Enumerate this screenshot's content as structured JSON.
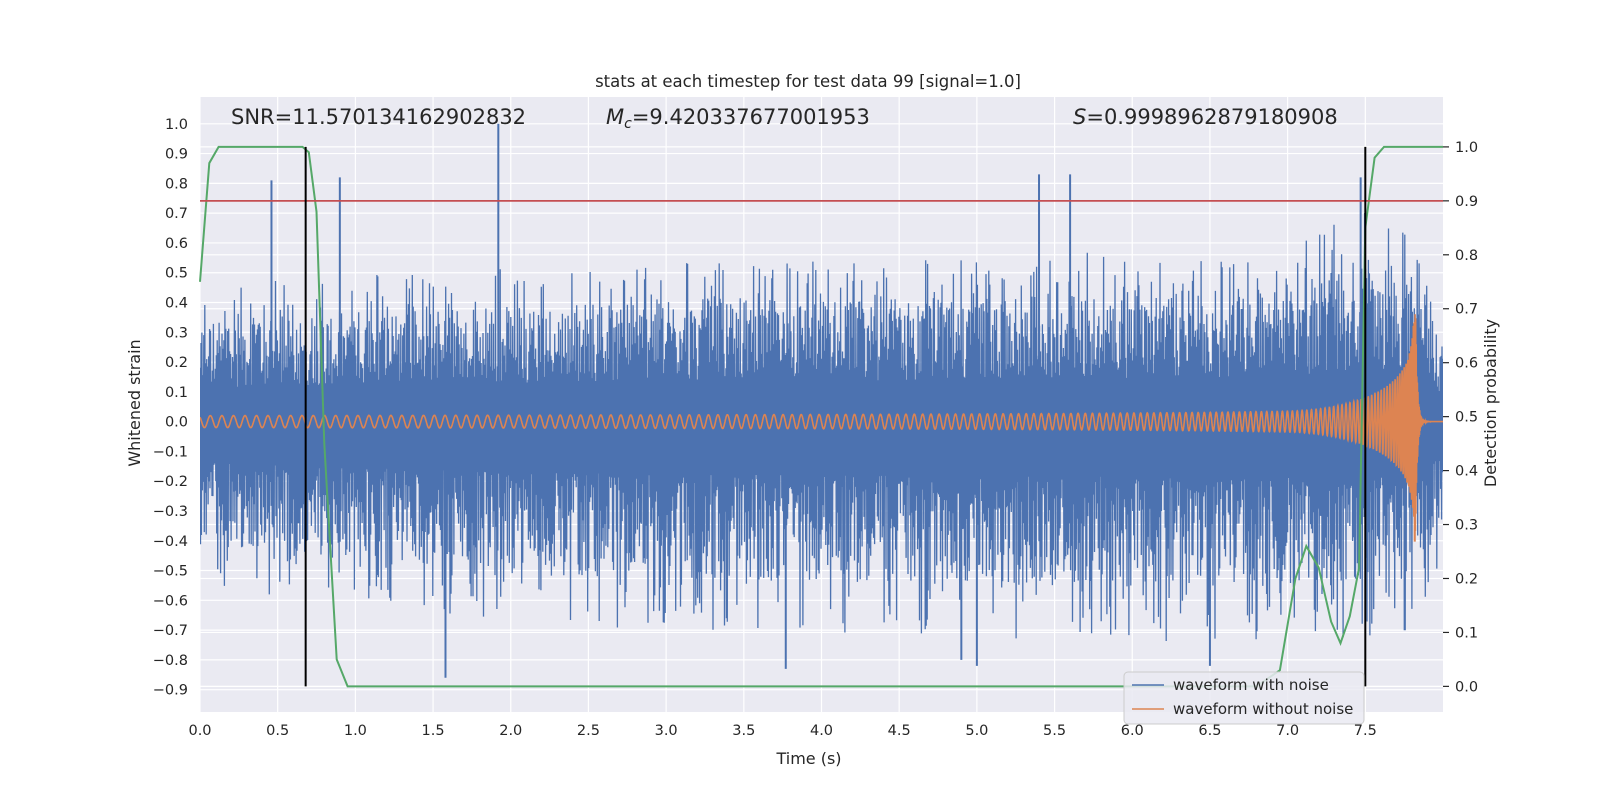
{
  "chart_data": {
    "type": "line",
    "title": "stats at each timestep for test data 99 [signal=1.0]",
    "xlabel": "Time (s)",
    "ylabel": "Whitened strain",
    "y2label": "Detection probability",
    "xlim": [
      0.0,
      8.0
    ],
    "ylim": [
      -0.975,
      1.09
    ],
    "y2lim": [
      -0.0475,
      1.0925
    ],
    "xticks": [
      0.0,
      0.5,
      1.0,
      1.5,
      2.0,
      2.5,
      3.0,
      3.5,
      4.0,
      4.5,
      5.0,
      5.5,
      6.0,
      6.5,
      7.0,
      7.5
    ],
    "xtick_labels": [
      "0.0",
      "0.5",
      "1.0",
      "1.5",
      "2.0",
      "2.5",
      "3.0",
      "3.5",
      "4.0",
      "4.5",
      "5.0",
      "5.5",
      "6.0",
      "6.5",
      "7.0",
      "7.5"
    ],
    "yticks": [
      1.0,
      0.9,
      0.8,
      0.7,
      0.6,
      0.5,
      0.4,
      0.3,
      0.2,
      0.1,
      0.0,
      -0.1,
      -0.2,
      -0.3,
      -0.4,
      -0.5,
      -0.6,
      -0.7,
      -0.8,
      -0.9
    ],
    "ytick_labels": [
      "1.0",
      "0.9",
      "0.8",
      "0.7",
      "0.6",
      "0.5",
      "0.4",
      "0.3",
      "0.2",
      "0.1",
      "0.0",
      "−0.1",
      "−0.2",
      "−0.3",
      "−0.4",
      "−0.5",
      "−0.6",
      "−0.7",
      "−0.8",
      "−0.9"
    ],
    "y2ticks": [
      1.0,
      0.9,
      0.8,
      0.7,
      0.6,
      0.5,
      0.4,
      0.3,
      0.2,
      0.1,
      0.0
    ],
    "y2tick_labels": [
      "1.0",
      "0.9",
      "0.8",
      "0.7",
      "0.6",
      "0.5",
      "0.4",
      "0.3",
      "0.2",
      "0.1",
      "0.0"
    ],
    "grid": true,
    "stats": {
      "snr": "SNR=11.570134162902832",
      "mc_symbol": "M",
      "mc_sub": "c",
      "mc_value": "=9.420337677001953",
      "s_symbol": "S",
      "s_value": "=0.9998962879180908"
    },
    "legend": {
      "placement": "lower-right",
      "entries": [
        "waveform with noise",
        "waveform without noise"
      ]
    },
    "series": [
      {
        "name": "waveform with noise",
        "axis": "left",
        "color": "#4c72b0",
        "kind": "noise",
        "envelope": {
          "t": [
            0.0,
            1.0,
            2.0,
            3.0,
            4.0,
            5.0,
            6.0,
            7.0,
            7.5,
            7.8,
            8.0
          ],
          "max": [
            0.45,
            0.5,
            0.52,
            0.55,
            0.55,
            0.55,
            0.58,
            0.6,
            0.72,
            0.68,
            0.35
          ],
          "min": [
            -0.55,
            -0.62,
            -0.68,
            -0.7,
            -0.72,
            -0.73,
            -0.74,
            -0.75,
            -0.72,
            -0.7,
            -0.45
          ]
        },
        "spikes": [
          {
            "t": 0.46,
            "y": 0.81
          },
          {
            "t": 0.9,
            "y": 0.82
          },
          {
            "t": 1.92,
            "y": 1.0
          },
          {
            "t": 5.4,
            "y": 0.83
          },
          {
            "t": 5.6,
            "y": 0.83
          },
          {
            "t": 7.47,
            "y": 0.82
          },
          {
            "t": 1.58,
            "y": -0.86
          },
          {
            "t": 5.0,
            "y": -0.82
          },
          {
            "t": 3.77,
            "y": -0.83
          },
          {
            "t": 6.5,
            "y": -0.82
          },
          {
            "t": 4.9,
            "y": -0.8
          }
        ]
      },
      {
        "name": "waveform without noise",
        "axis": "left",
        "color": "#dd8452",
        "kind": "chirp",
        "t_merger": 7.82,
        "amplitude_early": 0.02,
        "amplitude_peak": 0.5,
        "amplitude_trough": -0.4
      },
      {
        "axis": "right",
        "color": "#55a868",
        "kind": "line",
        "x": [
          0.0,
          0.06,
          0.12,
          0.25,
          0.45,
          0.66,
          0.7,
          0.75,
          0.8,
          0.88,
          0.95,
          1.1,
          1.6,
          2.5,
          4.0,
          5.0,
          6.0,
          6.8,
          6.95,
          7.05,
          7.12,
          7.2,
          7.28,
          7.34,
          7.4,
          7.46,
          7.5,
          7.56,
          7.62,
          7.7,
          8.0
        ],
        "y": [
          0.75,
          0.97,
          1.0,
          1.0,
          1.0,
          1.0,
          0.99,
          0.88,
          0.45,
          0.05,
          0.0,
          0.0,
          0.0,
          0.0,
          0.0,
          0.0,
          0.0,
          0.0,
          0.03,
          0.2,
          0.26,
          0.22,
          0.12,
          0.08,
          0.13,
          0.22,
          0.85,
          0.98,
          1.0,
          1.0,
          1.0
        ]
      }
    ],
    "hlines": [
      {
        "axis": "right",
        "y": 0.9,
        "color": "#c44e52"
      }
    ],
    "vlines": [
      {
        "x": 0.68,
        "y_from": 0.0,
        "y_to": 1.0,
        "axis": "right",
        "color": "#000000"
      },
      {
        "x": 7.5,
        "y_from": 0.0,
        "y_to": 1.0,
        "axis": "right",
        "color": "#000000"
      }
    ]
  }
}
